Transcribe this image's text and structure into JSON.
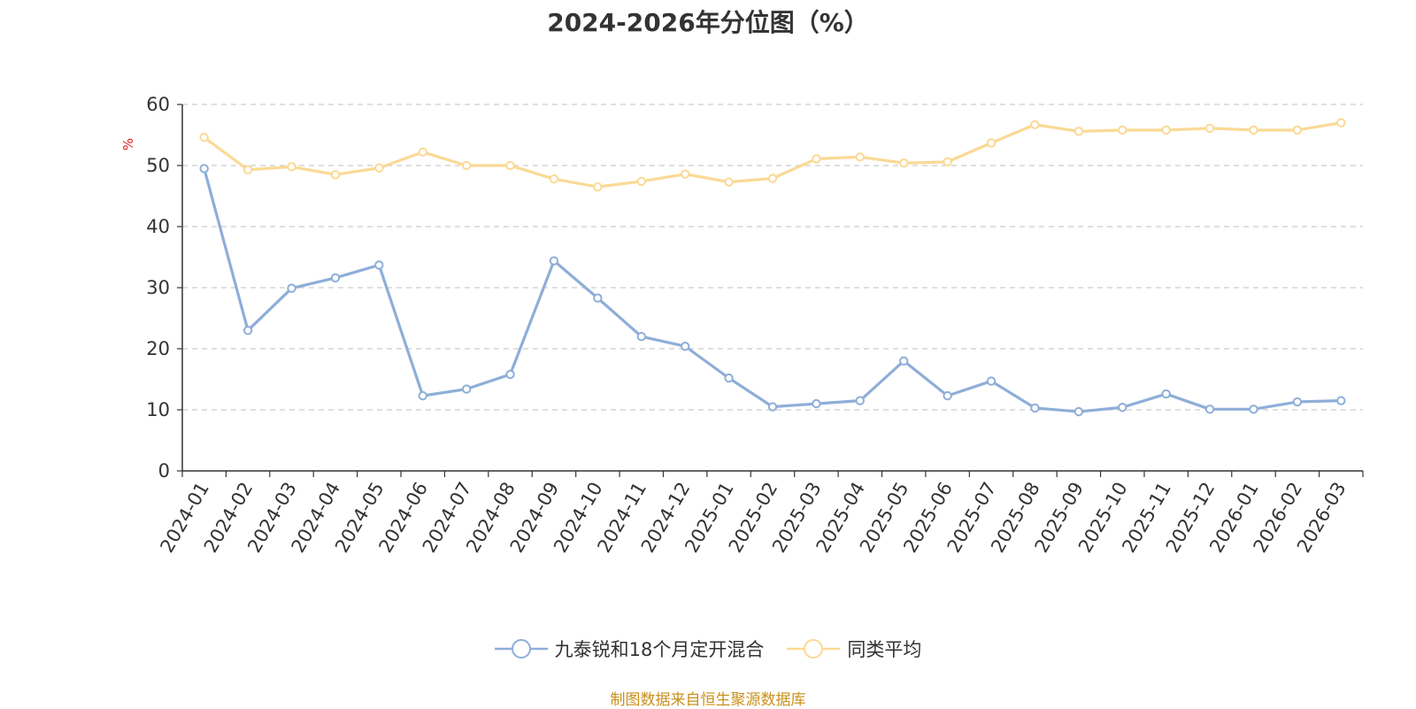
{
  "chart_data": {
    "type": "line",
    "title": "2024-2026年分位图（%）",
    "ylabel": "%",
    "ylim": [
      0,
      60
    ],
    "yticks": [
      0,
      10,
      20,
      30,
      40,
      50,
      60
    ],
    "grid": true,
    "legend_position": "bottom",
    "categories": [
      "2024-01",
      "2024-02",
      "2024-03",
      "2024-04",
      "2024-05",
      "2024-06",
      "2024-07",
      "2024-08",
      "2024-09",
      "2024-10",
      "2024-11",
      "2024-12",
      "2025-01",
      "2025-02",
      "2025-03",
      "2025-04",
      "2025-05",
      "2025-06",
      "2025-07",
      "2025-08",
      "2025-09",
      "2025-10",
      "2025-11",
      "2025-12",
      "2026-01",
      "2026-02",
      "2026-03"
    ],
    "series": [
      {
        "name": "九泰锐和18个月定开混合",
        "color": "#8eaed8",
        "values": [
          49.5,
          23.0,
          29.9,
          31.6,
          33.7,
          12.3,
          13.4,
          15.8,
          34.4,
          28.3,
          22.0,
          20.4,
          15.2,
          10.5,
          11.0,
          11.5,
          18.0,
          12.3,
          14.7,
          10.3,
          9.7,
          10.4,
          12.6,
          10.1,
          10.1,
          11.3,
          11.5
        ]
      },
      {
        "name": "同类平均",
        "color": "#fbd995",
        "values": [
          54.6,
          49.3,
          49.8,
          48.5,
          49.6,
          52.2,
          50.0,
          50.0,
          47.8,
          46.5,
          47.4,
          48.6,
          47.3,
          47.9,
          51.1,
          51.4,
          50.4,
          50.6,
          53.7,
          56.7,
          55.6,
          55.8,
          55.8,
          56.1,
          55.8,
          55.8,
          57.0
        ]
      }
    ]
  },
  "source_note": "制图数据来自恒生聚源数据库"
}
